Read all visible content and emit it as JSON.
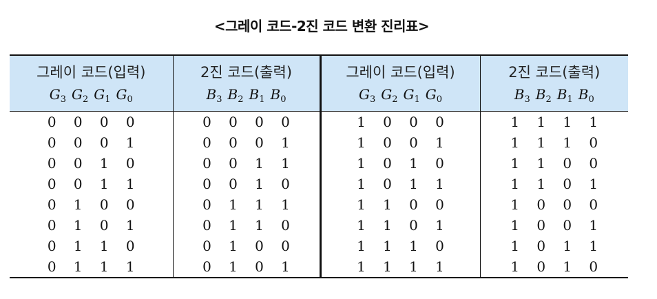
{
  "title": "<그레이 코드-2진 코드 변환 진리표>",
  "headers": [
    {
      "label": "그레이 코드(입력)",
      "vars": [
        {
          "v": "G",
          "s": "3"
        },
        {
          "v": "G",
          "s": "2"
        },
        {
          "v": "G",
          "s": "1"
        },
        {
          "v": "G",
          "s": "0"
        }
      ]
    },
    {
      "label": "2진 코드(출력)",
      "vars": [
        {
          "v": "B",
          "s": "3"
        },
        {
          "v": "B",
          "s": "2"
        },
        {
          "v": "B",
          "s": "1"
        },
        {
          "v": "B",
          "s": "0"
        }
      ]
    },
    {
      "label": "그레이 코드(입력)",
      "vars": [
        {
          "v": "G",
          "s": "3"
        },
        {
          "v": "G",
          "s": "2"
        },
        {
          "v": "G",
          "s": "1"
        },
        {
          "v": "G",
          "s": "0"
        }
      ]
    },
    {
      "label": "2진 코드(출력)",
      "vars": [
        {
          "v": "B",
          "s": "3"
        },
        {
          "v": "B",
          "s": "2"
        },
        {
          "v": "B",
          "s": "1"
        },
        {
          "v": "B",
          "s": "0"
        }
      ]
    }
  ],
  "rows": [
    [
      [
        "0",
        "0",
        "0",
        "0"
      ],
      [
        "0",
        "0",
        "0",
        "0"
      ],
      [
        "1",
        "0",
        "0",
        "0"
      ],
      [
        "1",
        "1",
        "1",
        "1"
      ]
    ],
    [
      [
        "0",
        "0",
        "0",
        "1"
      ],
      [
        "0",
        "0",
        "0",
        "1"
      ],
      [
        "1",
        "0",
        "0",
        "1"
      ],
      [
        "1",
        "1",
        "1",
        "0"
      ]
    ],
    [
      [
        "0",
        "0",
        "1",
        "0"
      ],
      [
        "0",
        "0",
        "1",
        "1"
      ],
      [
        "1",
        "0",
        "1",
        "0"
      ],
      [
        "1",
        "1",
        "0",
        "0"
      ]
    ],
    [
      [
        "0",
        "0",
        "1",
        "1"
      ],
      [
        "0",
        "0",
        "1",
        "0"
      ],
      [
        "1",
        "0",
        "1",
        "1"
      ],
      [
        "1",
        "1",
        "0",
        "1"
      ]
    ],
    [
      [
        "0",
        "1",
        "0",
        "0"
      ],
      [
        "0",
        "1",
        "1",
        "1"
      ],
      [
        "1",
        "1",
        "0",
        "0"
      ],
      [
        "1",
        "0",
        "0",
        "0"
      ]
    ],
    [
      [
        "0",
        "1",
        "0",
        "1"
      ],
      [
        "0",
        "1",
        "1",
        "0"
      ],
      [
        "1",
        "1",
        "0",
        "1"
      ],
      [
        "1",
        "0",
        "0",
        "1"
      ]
    ],
    [
      [
        "0",
        "1",
        "1",
        "0"
      ],
      [
        "0",
        "1",
        "0",
        "0"
      ],
      [
        "1",
        "1",
        "1",
        "0"
      ],
      [
        "1",
        "0",
        "1",
        "1"
      ]
    ],
    [
      [
        "0",
        "1",
        "1",
        "1"
      ],
      [
        "0",
        "1",
        "0",
        "1"
      ],
      [
        "1",
        "1",
        "1",
        "1"
      ],
      [
        "1",
        "0",
        "1",
        "0"
      ]
    ]
  ]
}
